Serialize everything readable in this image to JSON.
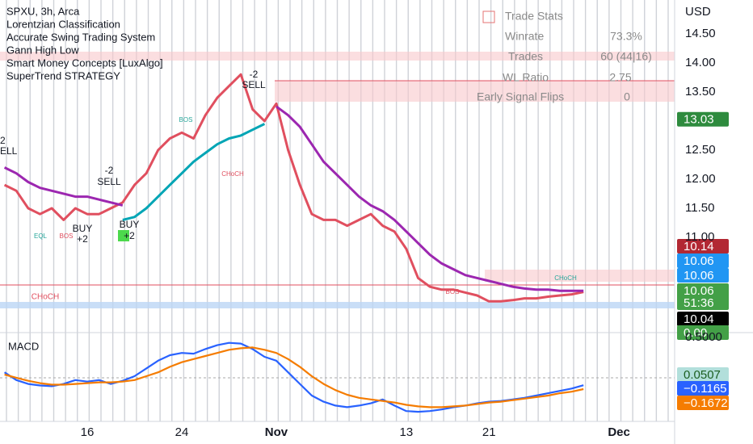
{
  "legend_lines": [
    "SPXU, 3h, Arca",
    "Lorentzian Classification",
    "Accurate Swing Trading System",
    "Gann High Low",
    "Smart Money Concepts [LuxAlgo]",
    "SuperTrend STRATEGY"
  ],
  "trade_stats": {
    "title": "Trade Stats",
    "rows": [
      [
        "Winrate",
        "73.3%"
      ],
      [
        "Trades",
        "60 (44|16)"
      ],
      [
        "WL Ratio",
        "2.75"
      ],
      [
        "Early Signal Flips",
        "0"
      ]
    ]
  },
  "annotations": [
    "-2",
    "SELL",
    "-2",
    "SELL",
    "2",
    "ELL",
    "BUY",
    "+2",
    "BUY",
    "+2",
    "BOS",
    "CHoCH",
    "EQL",
    "BOS",
    "BOS",
    "CHoCH",
    "CHoCH"
  ],
  "chart_data": [
    {
      "type": "line",
      "currency": "USD",
      "categories": [
        null,
        null,
        null,
        null,
        null,
        null,
        null,
        "16",
        null,
        null,
        null,
        null,
        null,
        null,
        null,
        "24",
        null,
        null,
        null,
        null,
        null,
        null,
        null,
        "Nov",
        null,
        null,
        null,
        null,
        null,
        null,
        null,
        null,
        null,
        null,
        "13",
        null,
        null,
        null,
        null,
        null,
        null,
        "21",
        null,
        null,
        null,
        null,
        null,
        null,
        null,
        null,
        null,
        null,
        "Dec"
      ],
      "series": [
        {
          "color": "#e04f5f",
          "values": [
            11.9,
            11.8,
            11.5,
            11.4,
            11.5,
            11.3,
            11.5,
            11.4,
            11.4,
            11.5,
            11.6,
            11.9,
            12.1,
            12.5,
            12.7,
            12.8,
            12.7,
            13.1,
            13.4,
            13.6,
            13.8,
            13.2,
            13.0,
            13.3,
            12.5,
            11.9,
            11.4,
            11.3,
            11.3,
            11.2,
            11.3,
            11.4,
            11.2,
            11.1,
            10.8,
            10.3,
            10.15,
            10.1,
            10.1,
            10.05,
            10.0,
            9.9,
            9.9,
            9.92,
            9.95,
            9.95,
            9.98,
            10.0,
            10.02,
            10.06,
            null,
            null,
            null
          ]
        },
        {
          "color": "#9c27b0",
          "values": [
            12.2,
            12.1,
            11.95,
            11.85,
            11.8,
            11.75,
            11.7,
            11.7,
            11.65,
            11.6,
            11.55,
            null,
            null,
            null,
            null,
            null,
            null,
            null,
            null,
            null,
            null,
            null,
            null,
            13.25,
            13.1,
            12.9,
            12.6,
            12.3,
            12.1,
            11.9,
            11.7,
            11.55,
            11.45,
            11.3,
            11.1,
            10.9,
            10.7,
            10.55,
            10.45,
            10.35,
            10.3,
            10.25,
            10.2,
            10.15,
            10.12,
            10.1,
            10.1,
            10.08,
            10.08,
            10.08,
            null,
            null,
            null
          ]
        },
        {
          "color": "#00a5b5",
          "values": [
            null,
            null,
            null,
            null,
            null,
            null,
            null,
            null,
            null,
            null,
            11.3,
            11.35,
            11.5,
            11.7,
            11.9,
            12.1,
            12.3,
            12.45,
            12.6,
            12.7,
            12.75,
            12.85,
            12.95,
            null,
            null,
            null,
            null,
            null,
            null,
            null,
            null,
            null,
            null,
            null,
            null,
            null,
            null,
            null,
            null,
            null,
            null,
            null,
            null,
            null,
            null,
            null,
            null,
            null,
            null,
            null,
            null,
            null,
            null
          ]
        }
      ],
      "ylim": [
        9.39,
        15.08
      ],
      "yticks": [
        {
          "value": 14.5,
          "label": "14.50"
        },
        {
          "value": 14.0,
          "label": "14.00"
        },
        {
          "value": 13.5,
          "label": "13.50"
        },
        {
          "value": 12.5,
          "label": "12.50"
        },
        {
          "value": 12.0,
          "label": "12.00"
        },
        {
          "value": 11.5,
          "label": "11.50"
        },
        {
          "value": 11.0,
          "label": "11.00"
        }
      ],
      "badges": [
        {
          "value": 13.03,
          "label": "13.03",
          "color": "#2e8b3e"
        },
        {
          "value": 10.14,
          "label": "10.14",
          "color": "#b22833"
        },
        {
          "value": 10.06,
          "label": "10.06",
          "color": "#2196f3"
        },
        {
          "value": 10.06,
          "label": "10.06",
          "color": "#2196f3"
        },
        {
          "value": 10.06,
          "label": "10.06",
          "color": "#43a047"
        },
        {
          "label": "51:36",
          "color": "#43a047"
        },
        {
          "value": 10.04,
          "label": "10.04",
          "color": "#000000"
        },
        {
          "value": 0,
          "label": "0.00",
          "color": "#43a047"
        }
      ]
    },
    {
      "type": "line",
      "title": "MACD",
      "series": [
        {
          "color": "#2962ff",
          "values": [
            0.05,
            -0.05,
            -0.1,
            -0.12,
            -0.13,
            -0.1,
            -0.05,
            -0.07,
            -0.05,
            -0.1,
            -0.06,
            0.0,
            0.1,
            0.2,
            0.27,
            0.3,
            0.29,
            0.35,
            0.4,
            0.43,
            0.42,
            0.35,
            0.25,
            0.2,
            0.05,
            -0.1,
            -0.25,
            -0.33,
            -0.38,
            -0.4,
            -0.38,
            -0.35,
            -0.3,
            -0.38,
            -0.45,
            -0.46,
            -0.45,
            -0.43,
            -0.4,
            -0.38,
            -0.35,
            -0.33,
            -0.32,
            -0.3,
            -0.28,
            -0.25,
            -0.22,
            -0.19,
            -0.16,
            -0.1165,
            null,
            null,
            null
          ]
        },
        {
          "color": "#f57c00",
          "values": [
            0.02,
            -0.02,
            -0.06,
            -0.09,
            -0.11,
            -0.11,
            -0.1,
            -0.09,
            -0.08,
            -0.08,
            -0.07,
            -0.05,
            0.0,
            0.05,
            0.12,
            0.18,
            0.22,
            0.26,
            0.3,
            0.34,
            0.36,
            0.37,
            0.34,
            0.3,
            0.22,
            0.12,
            0.0,
            -0.1,
            -0.18,
            -0.24,
            -0.28,
            -0.3,
            -0.32,
            -0.34,
            -0.37,
            -0.39,
            -0.4,
            -0.4,
            -0.39,
            -0.38,
            -0.36,
            -0.34,
            -0.33,
            -0.31,
            -0.29,
            -0.27,
            -0.25,
            -0.22,
            -0.2,
            -0.1672,
            null,
            null,
            null
          ]
        }
      ],
      "ylim": [
        -0.667,
        0.583
      ],
      "yticks": [
        {
          "value": 0.5,
          "label": "0.5000"
        }
      ],
      "badges": [
        {
          "value": 0.0507,
          "label": "0.0507",
          "color": "#b2dfdb",
          "text": "#1b5e20"
        },
        {
          "value": -0.1165,
          "label": "−0.1165",
          "color": "#2962ff"
        },
        {
          "value": -0.1672,
          "label": "−0.1672",
          "color": "#f57c00"
        }
      ]
    }
  ]
}
